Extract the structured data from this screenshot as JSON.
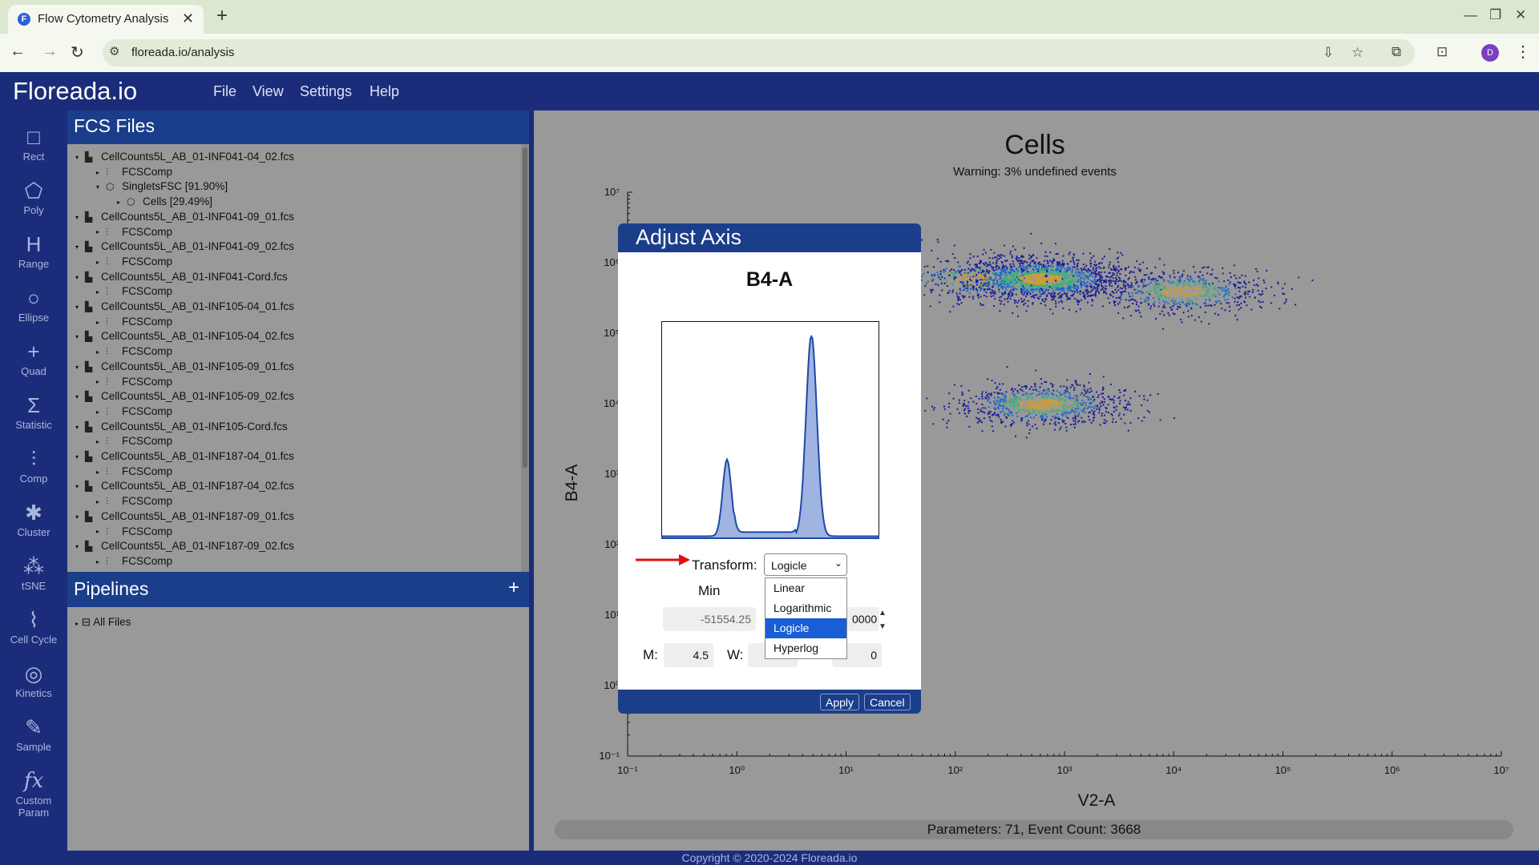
{
  "browser": {
    "tab_title": "Flow Cytometry Analysis",
    "tab_favicon": "F",
    "url": "floreada.io/analysis",
    "profile_initial": "D"
  },
  "app": {
    "brand": "Floreada.io",
    "menu": [
      "File",
      "View",
      "Settings",
      "Help"
    ]
  },
  "tools": [
    {
      "label": "Rect",
      "icon": "rect-tool-icon"
    },
    {
      "label": "Poly",
      "icon": "poly-tool-icon"
    },
    {
      "label": "Range",
      "icon": "range-tool-icon"
    },
    {
      "label": "Ellipse",
      "icon": "ellipse-tool-icon"
    },
    {
      "label": "Quad",
      "icon": "quad-tool-icon"
    },
    {
      "label": "Statistic",
      "icon": "sigma-icon"
    },
    {
      "label": "Comp",
      "icon": "sliders-icon"
    },
    {
      "label": "Cluster",
      "icon": "cluster-icon"
    },
    {
      "label": "tSNE",
      "icon": "tsne-icon"
    },
    {
      "label": "Cell Cycle",
      "icon": "cell-cycle-icon"
    },
    {
      "label": "Kinetics",
      "icon": "kinetics-icon"
    },
    {
      "label": "Sample",
      "icon": "sample-icon"
    },
    {
      "label": "Custom",
      "icon": "fx-icon",
      "label2": "Param"
    }
  ],
  "fcs_panel": {
    "title": "FCS Files",
    "tree": [
      {
        "level": 0,
        "text": "CellCounts5L_AB_01-INF041-04_02.fcs",
        "icon": "histogram-icon",
        "expanded": true
      },
      {
        "level": 1,
        "text": "FCSComp",
        "icon": "comp-icon"
      },
      {
        "level": 1,
        "text": "SingletsFSC [91.90%]",
        "icon": "polygon-gate-icon",
        "expanded": true
      },
      {
        "level": 2,
        "text": "Cells [29.49%]",
        "icon": "polygon-gate-icon"
      },
      {
        "level": 0,
        "text": "CellCounts5L_AB_01-INF041-09_01.fcs",
        "icon": "histogram-icon",
        "expanded": true
      },
      {
        "level": 1,
        "text": "FCSComp",
        "icon": "comp-icon"
      },
      {
        "level": 0,
        "text": "CellCounts5L_AB_01-INF041-09_02.fcs",
        "icon": "histogram-icon",
        "expanded": true
      },
      {
        "level": 1,
        "text": "FCSComp",
        "icon": "comp-icon"
      },
      {
        "level": 0,
        "text": "CellCounts5L_AB_01-INF041-Cord.fcs",
        "icon": "histogram-icon",
        "expanded": true
      },
      {
        "level": 1,
        "text": "FCSComp",
        "icon": "comp-icon"
      },
      {
        "level": 0,
        "text": "CellCounts5L_AB_01-INF105-04_01.fcs",
        "icon": "histogram-icon",
        "expanded": true
      },
      {
        "level": 1,
        "text": "FCSComp",
        "icon": "comp-icon"
      },
      {
        "level": 0,
        "text": "CellCounts5L_AB_01-INF105-04_02.fcs",
        "icon": "histogram-icon",
        "expanded": true
      },
      {
        "level": 1,
        "text": "FCSComp",
        "icon": "comp-icon"
      },
      {
        "level": 0,
        "text": "CellCounts5L_AB_01-INF105-09_01.fcs",
        "icon": "histogram-icon",
        "expanded": true
      },
      {
        "level": 1,
        "text": "FCSComp",
        "icon": "comp-icon"
      },
      {
        "level": 0,
        "text": "CellCounts5L_AB_01-INF105-09_02.fcs",
        "icon": "histogram-icon",
        "expanded": true
      },
      {
        "level": 1,
        "text": "FCSComp",
        "icon": "comp-icon"
      },
      {
        "level": 0,
        "text": "CellCounts5L_AB_01-INF105-Cord.fcs",
        "icon": "histogram-icon",
        "expanded": true
      },
      {
        "level": 1,
        "text": "FCSComp",
        "icon": "comp-icon"
      },
      {
        "level": 0,
        "text": "CellCounts5L_AB_01-INF187-04_01.fcs",
        "icon": "histogram-icon",
        "expanded": true
      },
      {
        "level": 1,
        "text": "FCSComp",
        "icon": "comp-icon"
      },
      {
        "level": 0,
        "text": "CellCounts5L_AB_01-INF187-04_02.fcs",
        "icon": "histogram-icon",
        "expanded": true
      },
      {
        "level": 1,
        "text": "FCSComp",
        "icon": "comp-icon"
      },
      {
        "level": 0,
        "text": "CellCounts5L_AB_01-INF187-09_01.fcs",
        "icon": "histogram-icon",
        "expanded": true
      },
      {
        "level": 1,
        "text": "FCSComp",
        "icon": "comp-icon"
      },
      {
        "level": 0,
        "text": "CellCounts5L_AB_01-INF187-09_02.fcs",
        "icon": "histogram-icon",
        "expanded": true
      },
      {
        "level": 1,
        "text": "FCSComp",
        "icon": "comp-icon"
      }
    ]
  },
  "pipelines": {
    "title": "Pipelines",
    "add": "+",
    "item": "All Files"
  },
  "plot": {
    "title": "Cells",
    "warning": "Warning: 3% undefined events",
    "xlabel": "V2-A",
    "ylabel": "B4-A",
    "status": "Parameters: 71, Event Count: 3668"
  },
  "dialog": {
    "title": "Adjust Axis",
    "parameter": "B4-A",
    "transform_label": "Transform:",
    "transform_value": "Logicle",
    "transform_options": [
      "Linear",
      "Logarithmic",
      "Logicle",
      "Hyperlog"
    ],
    "min_label": "Min",
    "min_value": "-51554.25",
    "max_value_partial": "0000",
    "m_label": "M:",
    "m_value": "4.5",
    "w_label": "W:",
    "a_value": "0",
    "apply": "Apply",
    "cancel": "Cancel"
  },
  "footer": "Copyright © 2020-2024 Floreada.io",
  "colors": {
    "brand_blue": "#1b2d7a",
    "panel_blue": "#1b3e8a",
    "panel_gray": "#999999",
    "selection_blue": "#1a5ed6",
    "annotation_red": "#e01010"
  },
  "chart_data": [
    {
      "type": "scatter",
      "title": "Cells",
      "subtitle": "Warning: 3% undefined events",
      "xlabel": "V2-A",
      "ylabel": "B4-A",
      "xscale": "log",
      "yscale": "log",
      "xlim": [
        0.1,
        10000000
      ],
      "ylim": [
        0.1,
        10000000
      ],
      "x_ticks": [
        "10⁻¹",
        "10⁰",
        "10¹",
        "10²",
        "10³",
        "10⁴",
        "10⁵",
        "10⁶",
        "10⁷"
      ],
      "y_ticks": [
        "10⁻¹",
        "10⁰",
        "10¹",
        "10²",
        "10³",
        "10⁴",
        "10⁵",
        "10⁶",
        "10⁷"
      ],
      "clusters": [
        {
          "center_x": 600,
          "center_y": 600000,
          "count": 1600
        },
        {
          "center_x": 12000,
          "center_y": 400000,
          "count": 600
        },
        {
          "center_x": 600,
          "center_y": 10000,
          "count": 800
        },
        {
          "center_x": 150,
          "center_y": 600000,
          "count": 250
        }
      ],
      "event_count": 3668
    },
    {
      "type": "area",
      "title": "B4-A",
      "xscale": "logicle",
      "ylabel": "",
      "xlabel": "",
      "peaks": [
        {
          "position": 0.3,
          "height": 0.38,
          "width": 0.02
        },
        {
          "position": 0.69,
          "height": 1.0,
          "width": 0.025
        }
      ]
    }
  ]
}
